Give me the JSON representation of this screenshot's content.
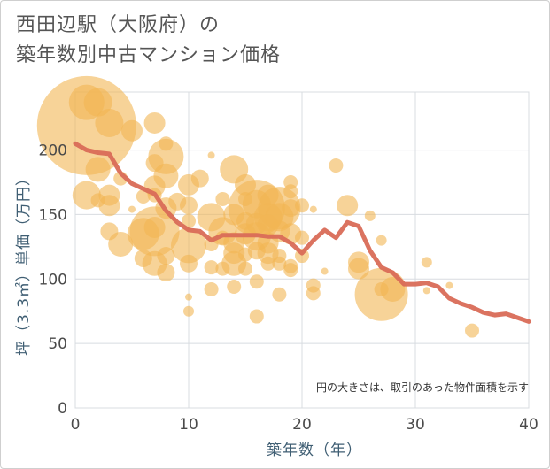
{
  "title_line1": "西田辺駅（大阪府）の",
  "title_line2": "築年数別中古マンション価格",
  "chart_data": {
    "type": "scatter",
    "xlabel": "築年数（年）",
    "ylabel": "坪（3.3㎡）単価（万円）",
    "xlim": [
      0,
      40
    ],
    "ylim": [
      0,
      245
    ],
    "xticks": [
      "0",
      "10",
      "20",
      "30",
      "40"
    ],
    "yticks": [
      "0",
      "50",
      "100",
      "150",
      "200"
    ],
    "grid": true,
    "note": "円の大きさは、取引のあった物件面積を示す",
    "bubble_color": "#f2b654",
    "line_color": "#d96b57",
    "bubbles": [
      [
        1,
        219,
        14
      ],
      [
        1,
        237,
        5
      ],
      [
        2,
        237,
        4
      ],
      [
        3,
        221,
        4
      ],
      [
        1,
        165,
        4
      ],
      [
        2,
        185,
        3.5
      ],
      [
        2,
        161,
        2
      ],
      [
        3,
        157,
        3
      ],
      [
        3,
        165,
        3
      ],
      [
        3,
        137,
        2.5
      ],
      [
        4,
        178,
        2
      ],
      [
        5,
        215,
        3
      ],
      [
        5,
        154,
        1
      ],
      [
        4,
        127,
        3.5
      ],
      [
        6,
        164,
        2
      ],
      [
        6,
        116,
        2.5
      ],
      [
        7,
        221,
        3
      ],
      [
        7,
        190,
        2.5
      ],
      [
        8,
        205,
        2
      ],
      [
        8,
        195,
        5
      ],
      [
        8,
        180,
        3.5
      ],
      [
        7,
        172,
        3
      ],
      [
        7,
        165,
        2
      ],
      [
        8,
        155,
        3
      ],
      [
        7,
        140,
        3
      ],
      [
        6,
        135,
        4.5
      ],
      [
        7,
        137,
        7
      ],
      [
        7,
        112,
        3.5
      ],
      [
        8,
        105,
        2.5
      ],
      [
        8,
        118,
        2.5
      ],
      [
        9,
        160,
        2.5
      ],
      [
        10,
        173,
        3
      ],
      [
        10,
        145,
        2
      ],
      [
        10,
        157,
        2.5
      ],
      [
        10,
        126,
        5
      ],
      [
        10,
        112,
        2.5
      ],
      [
        10,
        86,
        1
      ],
      [
        10,
        75,
        1.5
      ],
      [
        11,
        178,
        2.5
      ],
      [
        12,
        196,
        1
      ],
      [
        12,
        148,
        4
      ],
      [
        12,
        127,
        2
      ],
      [
        12,
        109,
        2
      ],
      [
        12,
        92,
        2
      ],
      [
        13,
        162,
        2
      ],
      [
        13,
        137,
        4
      ],
      [
        13,
        132,
        2
      ],
      [
        13,
        108,
        2
      ],
      [
        14,
        185,
        4
      ],
      [
        14,
        150,
        3
      ],
      [
        14,
        128,
        3
      ],
      [
        14,
        120,
        3
      ],
      [
        14,
        112,
        3.5
      ],
      [
        14,
        94,
        2
      ],
      [
        15,
        173,
        3
      ],
      [
        15,
        162,
        2
      ],
      [
        15,
        145,
        2.5
      ],
      [
        15,
        135,
        3
      ],
      [
        15,
        119,
        2
      ],
      [
        15,
        108,
        2
      ],
      [
        16,
        158,
        4
      ],
      [
        16,
        155,
        8
      ],
      [
        16,
        143,
        3
      ],
      [
        16,
        133,
        4
      ],
      [
        16,
        122,
        2.5
      ],
      [
        16,
        98,
        2
      ],
      [
        16,
        71,
        2
      ],
      [
        17,
        165,
        3
      ],
      [
        17,
        148,
        4
      ],
      [
        17,
        142,
        3
      ],
      [
        17,
        128,
        3
      ],
      [
        17,
        120,
        3
      ],
      [
        17,
        112,
        2
      ],
      [
        18,
        155,
        6
      ],
      [
        18,
        148,
        4
      ],
      [
        18,
        137,
        3
      ],
      [
        18,
        118,
        2
      ],
      [
        18,
        112,
        2
      ],
      [
        18,
        88,
        2
      ],
      [
        19,
        175,
        2
      ],
      [
        19,
        168,
        2
      ],
      [
        19,
        155,
        2.5
      ],
      [
        19,
        135,
        3
      ],
      [
        19,
        110,
        2
      ],
      [
        19,
        107,
        2
      ],
      [
        20,
        157,
        2
      ],
      [
        20,
        132,
        2
      ],
      [
        20,
        118,
        2
      ],
      [
        21,
        95,
        2
      ],
      [
        21,
        89,
        2
      ],
      [
        21,
        154,
        1
      ],
      [
        22,
        106,
        1
      ],
      [
        23,
        188,
        2
      ],
      [
        24,
        157,
        3
      ],
      [
        25,
        113,
        3
      ],
      [
        25,
        108,
        3
      ],
      [
        26,
        149,
        1.5
      ],
      [
        27,
        88,
        7.5
      ],
      [
        27,
        92,
        2
      ],
      [
        27,
        130,
        1.5
      ],
      [
        28,
        92,
        3.5
      ],
      [
        31,
        113,
        1.5
      ],
      [
        31,
        91,
        1
      ],
      [
        33,
        95,
        1
      ],
      [
        35,
        60,
        2
      ]
    ],
    "line": {
      "x": [
        0,
        1,
        2,
        3,
        4,
        5,
        6,
        7,
        8,
        9,
        10,
        11,
        12,
        13,
        14,
        15,
        16,
        17,
        18,
        19,
        20,
        21,
        22,
        23,
        24,
        25,
        26,
        27,
        28,
        29,
        30,
        31,
        32,
        33,
        34,
        35,
        36,
        37,
        38,
        39,
        40
      ],
      "y": [
        205,
        200,
        198,
        197,
        182,
        174,
        170,
        166,
        153,
        144,
        138,
        137,
        130,
        134,
        134,
        134,
        134,
        133,
        133,
        128,
        120,
        130,
        138,
        132,
        144,
        141,
        122,
        109,
        105,
        96,
        96,
        97,
        94,
        85,
        81,
        78,
        74,
        72,
        73,
        70,
        67
      ]
    }
  }
}
